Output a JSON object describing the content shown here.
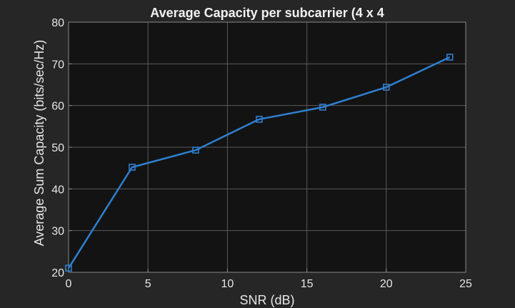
{
  "chart_data": {
    "type": "line",
    "title": "Average Capacity per subcarrier (4 x 4",
    "xlabel": "SNR (dB)",
    "ylabel": "Average Sum Capacity (bits/sec/Hz)",
    "xlim": [
      0,
      25
    ],
    "ylim": [
      20,
      80
    ],
    "xticks": [
      0,
      5,
      10,
      15,
      20,
      25
    ],
    "yticks": [
      20,
      30,
      40,
      50,
      60,
      70,
      80
    ],
    "grid": true,
    "series": [
      {
        "x": [
          0,
          4,
          8,
          12,
          16,
          20,
          24
        ],
        "values": [
          21,
          45.2,
          49.3,
          56.7,
          59.6,
          64.4,
          71.6
        ],
        "marker": "square",
        "color": "#2f7fd0"
      }
    ]
  },
  "colors": {
    "figure_bg": "#262626",
    "axes_bg": "#131313",
    "grid": "#5a5a5a",
    "text": "#e6e6e6"
  }
}
